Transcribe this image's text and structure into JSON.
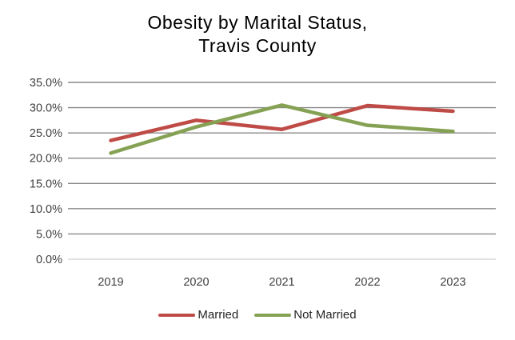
{
  "title": {
    "line1": "Obesity by Marital Status,",
    "line2": "Travis County"
  },
  "chart_data": {
    "type": "line",
    "title": "Obesity by Marital Status, Travis County",
    "categories": [
      "2019",
      "2020",
      "2021",
      "2022",
      "2023"
    ],
    "series": [
      {
        "name": "Married",
        "color": "#BF4B47",
        "values": [
          23.5,
          27.5,
          25.7,
          30.4,
          29.3
        ]
      },
      {
        "name": "Not Married",
        "color": "#85A254",
        "values": [
          21.0,
          26.2,
          30.5,
          26.5,
          25.3
        ]
      }
    ],
    "xlabel": "",
    "ylabel": "",
    "y_axis": {
      "min": 0,
      "max": 35,
      "step": 5,
      "unit": "%",
      "tick_labels": [
        "0.0%",
        "5.0%",
        "10.0%",
        "15.0%",
        "20.0%",
        "25.0%",
        "30.0%",
        "35.0%"
      ]
    },
    "grid": true,
    "legend_position": "bottom"
  },
  "colors": {
    "gridline": "#898989",
    "axis_line": "#D9D9D9",
    "tick_text": "#3f3f3f",
    "title_text": "#000000",
    "background": "#FFFFFF"
  }
}
